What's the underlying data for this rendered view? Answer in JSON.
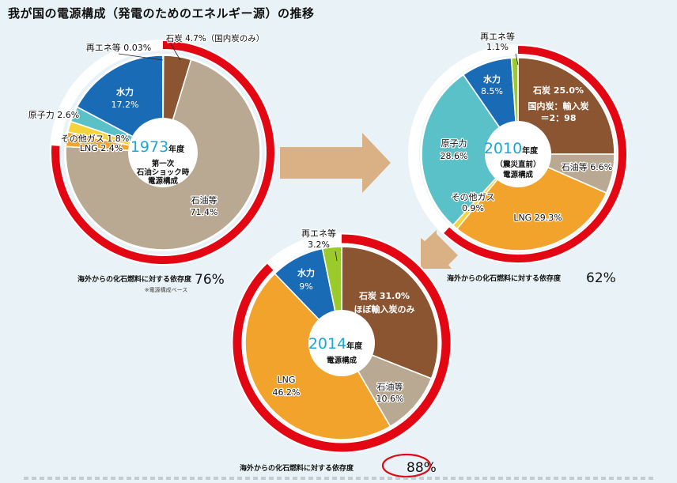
{
  "title": "我が国の電源構成（発電のためのエネルギー源）の推移",
  "colors": {
    "coal": "#8a5530",
    "oil": "#b9a992",
    "lng": "#f2a32b",
    "other_gas": "#f5d33a",
    "nuclear": "#5bc1c8",
    "hydro": "#1a6bb5",
    "renewable": "#9acb2a",
    "ring": "#e30613",
    "year": "#1aa6d8",
    "arrow": "#d9b184"
  },
  "chart_data": [
    {
      "type": "pie",
      "year": "1973",
      "year_suffix": "年度",
      "center_lines": [
        "第一次",
        "石油ショック時",
        "電源構成"
      ],
      "dependency_label": "海外からの化石燃料に対する依存度",
      "dependency_value": "76%",
      "dependency_value_num": 76,
      "note": "※電源構成ベース",
      "slices": [
        {
          "key": "coal",
          "name": "石炭",
          "value": 4.7,
          "label": "石炭 4.7%（国内炭のみ）"
        },
        {
          "key": "oil",
          "name": "石油等",
          "value": 71.4,
          "label": "石油等",
          "label2": "71.4%"
        },
        {
          "key": "lng",
          "name": "LNG",
          "value": 2.4,
          "label": "LNG 2.4%"
        },
        {
          "key": "other_gas",
          "name": "その他ガス",
          "value": 1.8,
          "label": "その他ガス 1.8%"
        },
        {
          "key": "nuclear",
          "name": "原子力",
          "value": 2.6,
          "label": "原子力 2.6%"
        },
        {
          "key": "hydro",
          "name": "水力",
          "value": 17.2,
          "label": "水力",
          "label2": "17.2%"
        },
        {
          "key": "renewable",
          "name": "再エネ等",
          "value": 0.03,
          "label": "再エネ等 0.03%"
        }
      ]
    },
    {
      "type": "pie",
      "year": "2010",
      "year_suffix": "年度",
      "center_lines": [
        "（震災直前）",
        "電源構成"
      ],
      "dependency_label": "海外からの化石燃料に対する依存度",
      "dependency_value": "62%",
      "dependency_value_num": 62,
      "slices": [
        {
          "key": "coal",
          "name": "石炭",
          "value": 25.0,
          "label": "石炭 25.0%",
          "label2": "国内炭：輸入炭",
          "label3": "＝2：98"
        },
        {
          "key": "oil",
          "name": "石油等",
          "value": 6.6,
          "label": "石油等 6.6%"
        },
        {
          "key": "lng",
          "name": "LNG",
          "value": 29.3,
          "label": "LNG 29.3%"
        },
        {
          "key": "other_gas",
          "name": "その他ガス",
          "value": 0.9,
          "label": "その他ガス",
          "label2": "0.9%"
        },
        {
          "key": "nuclear",
          "name": "原子力",
          "value": 28.6,
          "label": "原子力",
          "label2": "28.6%"
        },
        {
          "key": "hydro",
          "name": "水力",
          "value": 8.5,
          "label": "水力",
          "label2": "8.5%"
        },
        {
          "key": "renewable",
          "name": "再エネ等",
          "value": 1.1,
          "label": "再エネ等",
          "label2": "1.1%"
        }
      ]
    },
    {
      "type": "pie",
      "year": "2014",
      "year_suffix": "年度",
      "center_lines": [
        "電源構成"
      ],
      "dependency_label": "海外からの化石燃料に対する依存度",
      "dependency_value": "88%",
      "dependency_value_num": 88,
      "slices": [
        {
          "key": "coal",
          "name": "石炭",
          "value": 31.0,
          "label": "石炭 31.0%",
          "label2": "ほぼ輸入炭のみ"
        },
        {
          "key": "oil",
          "name": "石油等",
          "value": 10.6,
          "label": "石油等",
          "label2": "10.6%"
        },
        {
          "key": "lng",
          "name": "LNG",
          "value": 46.2,
          "label": "LNG",
          "label2": "46.2%"
        },
        {
          "key": "hydro",
          "name": "水力",
          "value": 9.0,
          "label": "水力",
          "label2": "9%"
        },
        {
          "key": "renewable",
          "name": "再エネ等",
          "value": 3.2,
          "label": "再エネ等",
          "label2": "3.2%"
        }
      ]
    }
  ]
}
